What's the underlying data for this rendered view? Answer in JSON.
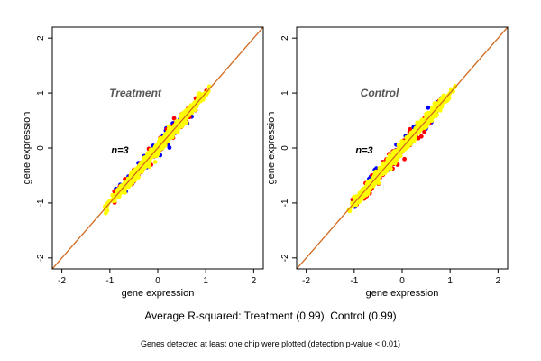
{
  "chart_data": [
    {
      "type": "scatter",
      "title": "Treatment",
      "annotation": "n=3",
      "xlabel": "gene expression",
      "ylabel": "gene expression",
      "xlim": [
        -2.2,
        2.2
      ],
      "ylim": [
        -2.2,
        2.2
      ],
      "xticks": [
        -2,
        -1,
        0,
        1,
        2
      ],
      "yticks": [
        -2,
        -1,
        0,
        1,
        2
      ],
      "reference_line": {
        "slope": 1,
        "intercept": 0,
        "color": "#d2691e"
      },
      "series": [
        {
          "color": "#0000ff",
          "x_range": [
            -1.1,
            1.0
          ],
          "spread": 0.09
        },
        {
          "color": "#ff0000",
          "x_range": [
            -1.1,
            1.05
          ],
          "spread": 0.08
        },
        {
          "color": "#ffff00",
          "x_range": [
            -1.15,
            1.15
          ],
          "spread": 0.05
        }
      ],
      "grid": false
    },
    {
      "type": "scatter",
      "title": "Control",
      "annotation": "n=3",
      "xlabel": "gene expression",
      "ylabel": "gene expression",
      "xlim": [
        -2.2,
        2.2
      ],
      "ylim": [
        -2.2,
        2.2
      ],
      "xticks": [
        -2,
        -1,
        0,
        1,
        2
      ],
      "yticks": [
        -2,
        -1,
        0,
        1,
        2
      ],
      "reference_line": {
        "slope": 1,
        "intercept": 0,
        "color": "#d2691e"
      },
      "series": [
        {
          "color": "#0000ff",
          "x_range": [
            -1.1,
            1.0
          ],
          "spread": 0.09
        },
        {
          "color": "#ff0000",
          "x_range": [
            -1.1,
            1.05
          ],
          "spread": 0.08
        },
        {
          "color": "#ffff00",
          "x_range": [
            -1.15,
            1.15
          ],
          "spread": 0.05
        }
      ],
      "grid": false
    }
  ],
  "captions": {
    "main": "Average R-squared: Treatment (0.99), Control (0.99)",
    "foot": "Genes detected at least one chip were plotted (detection p-value < 0.01)"
  }
}
